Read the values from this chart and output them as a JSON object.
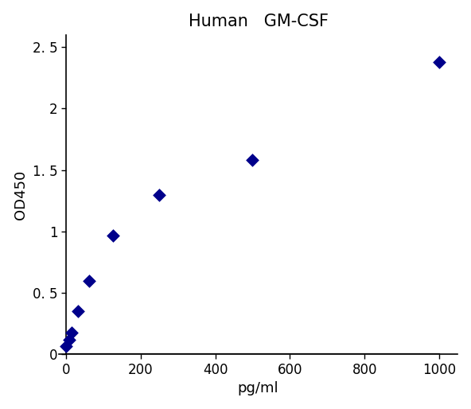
{
  "title": "Human   GM-CSF",
  "xlabel": "pg/ml",
  "ylabel": "OD450",
  "x_data": [
    0,
    7.8,
    15.6,
    31.2,
    62.5,
    125,
    250,
    500,
    1000
  ],
  "y_data": [
    0.07,
    0.12,
    0.18,
    0.35,
    0.6,
    0.97,
    1.3,
    1.58,
    2.38
  ],
  "marker_color": "#00008B",
  "line_color": "#000000",
  "background_color": "#ffffff",
  "xlim": [
    -20,
    1050
  ],
  "ylim": [
    0,
    2.6
  ],
  "xticks": [
    0,
    200,
    400,
    600,
    800,
    1000
  ],
  "yticks": [
    0,
    0.5,
    1,
    1.5,
    2,
    2.5
  ],
  "ytick_labels": [
    "0",
    "0. 5",
    "1",
    "1. 5",
    "2",
    "2. 5"
  ],
  "title_fontsize": 15,
  "axis_label_fontsize": 13,
  "tick_fontsize": 12,
  "marker_size": 8,
  "line_width": 1.6
}
